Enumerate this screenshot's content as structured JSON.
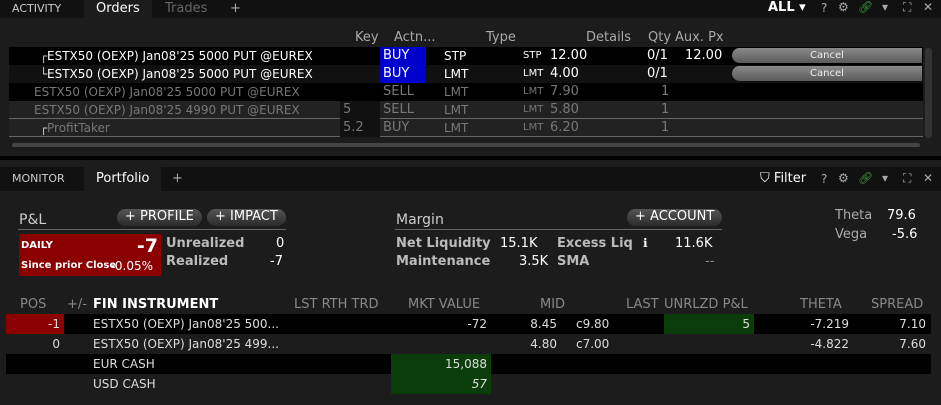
{
  "activity": {
    "tabs": [
      {
        "label": "ACTIVITY"
      },
      {
        "label": "Orders"
      },
      {
        "label": "Trades"
      }
    ],
    "add_tab": "+",
    "filter": "ALL",
    "help": "?",
    "columns": {
      "key": "Key",
      "action": "Actn...",
      "type": "Type",
      "details": "Details",
      "qty": "Qty",
      "aux": "Aux. Px"
    },
    "orders": [
      {
        "instrument": "ESTX50 (OEXP) Jan08'25 5000 PUT @EUREX",
        "key": "",
        "action": "BUY",
        "type": "STP",
        "ord_type": "STP",
        "price": "12.00",
        "qty": "0/1",
        "aux": "12.00",
        "cancel": "Cancel"
      },
      {
        "instrument": "ESTX50 (OEXP) Jan08'25 5000 PUT @EUREX",
        "key": "",
        "action": "BUY",
        "type": "LMT",
        "ord_type": "LMT",
        "price": "4.00",
        "qty": "0/1",
        "aux": "",
        "cancel": "Cancel"
      },
      {
        "instrument": "ESTX50 (OEXP) Jan08'25 5000 PUT @EUREX",
        "key": "",
        "action": "SELL",
        "type": "LMT",
        "ord_type": "LMT",
        "price": "7.90",
        "qty": "1",
        "aux": ""
      },
      {
        "instrument": "ESTX50 (OEXP) Jan08'25 4990 PUT @EUREX",
        "key": "5",
        "action": "SELL",
        "type": "LMT",
        "ord_type": "LMT",
        "price": "5.80",
        "qty": "1",
        "aux": ""
      },
      {
        "instrument": "ProfitTaker",
        "key": "5.2",
        "action": "BUY",
        "type": "LMT",
        "ord_type": "LMT",
        "price": "6.20",
        "qty": "1",
        "aux": ""
      }
    ]
  },
  "monitor": {
    "tabs": [
      {
        "label": "MONITOR"
      },
      {
        "label": "Portfolio"
      }
    ],
    "add_tab": "+",
    "filter": "Filter",
    "help": "?",
    "pnl": {
      "title": "P&L",
      "profile": "+ PROFILE",
      "impact": "+ IMPACT",
      "daily_label": "DAILY",
      "daily_value": "-7",
      "since_label": "Since prior Close",
      "since_value": "-0.05%",
      "unrealized_label": "Unrealized",
      "unrealized": "0",
      "realized_label": "Realized",
      "realized": "-7"
    },
    "margin": {
      "title": "Margin",
      "account": "+ ACCOUNT",
      "net_liq_label": "Net Liquidity",
      "net_liq": "15.1K",
      "excess_label": "Excess Liq",
      "excess": "11.6K",
      "maint_label": "Maintenance",
      "maint": "3.5K",
      "sma_label": "SMA",
      "sma": "--"
    },
    "greeks": {
      "theta_label": "Theta",
      "theta": "79.6",
      "vega_label": "Vega",
      "vega": "-5.6"
    },
    "columns": {
      "pos": "POS",
      "pm": "+/-",
      "instrument": "FIN INSTRUMENT",
      "lst": "LST RTH TRD",
      "mkt": "MKT VALUE",
      "mid": "MID",
      "last": "LAST",
      "unrlzd": "UNRLZD P&L",
      "theta": "THETA",
      "spread": "SPREAD"
    },
    "rows": [
      {
        "pos": "-1",
        "instrument": "ESTX50 (OEXP) Jan08'25 500...",
        "mkt": "-72",
        "mid": "8.45",
        "last": "c9.80",
        "unrlzd": "5",
        "theta": "-7.219",
        "spread": "7.10"
      },
      {
        "pos": "0",
        "instrument": "ESTX50 (OEXP) Jan08'25 499...",
        "mkt": "",
        "mid": "4.80",
        "last": "c7.00",
        "unrlzd": "",
        "theta": "-4.822",
        "spread": "7.60"
      },
      {
        "pos": "",
        "instrument": "EUR CASH",
        "mkt": "15,088",
        "mid": "",
        "last": "",
        "unrlzd": "",
        "theta": "",
        "spread": ""
      },
      {
        "pos": "",
        "instrument": "USD CASH",
        "mkt": "57",
        "mid": "",
        "last": "",
        "unrlzd": "",
        "theta": "",
        "spread": ""
      }
    ]
  },
  "colors": {
    "buy": "#0000cc",
    "loss": "#8b0000",
    "gain": "#0b3d0b",
    "link": "#3c9a3c"
  }
}
